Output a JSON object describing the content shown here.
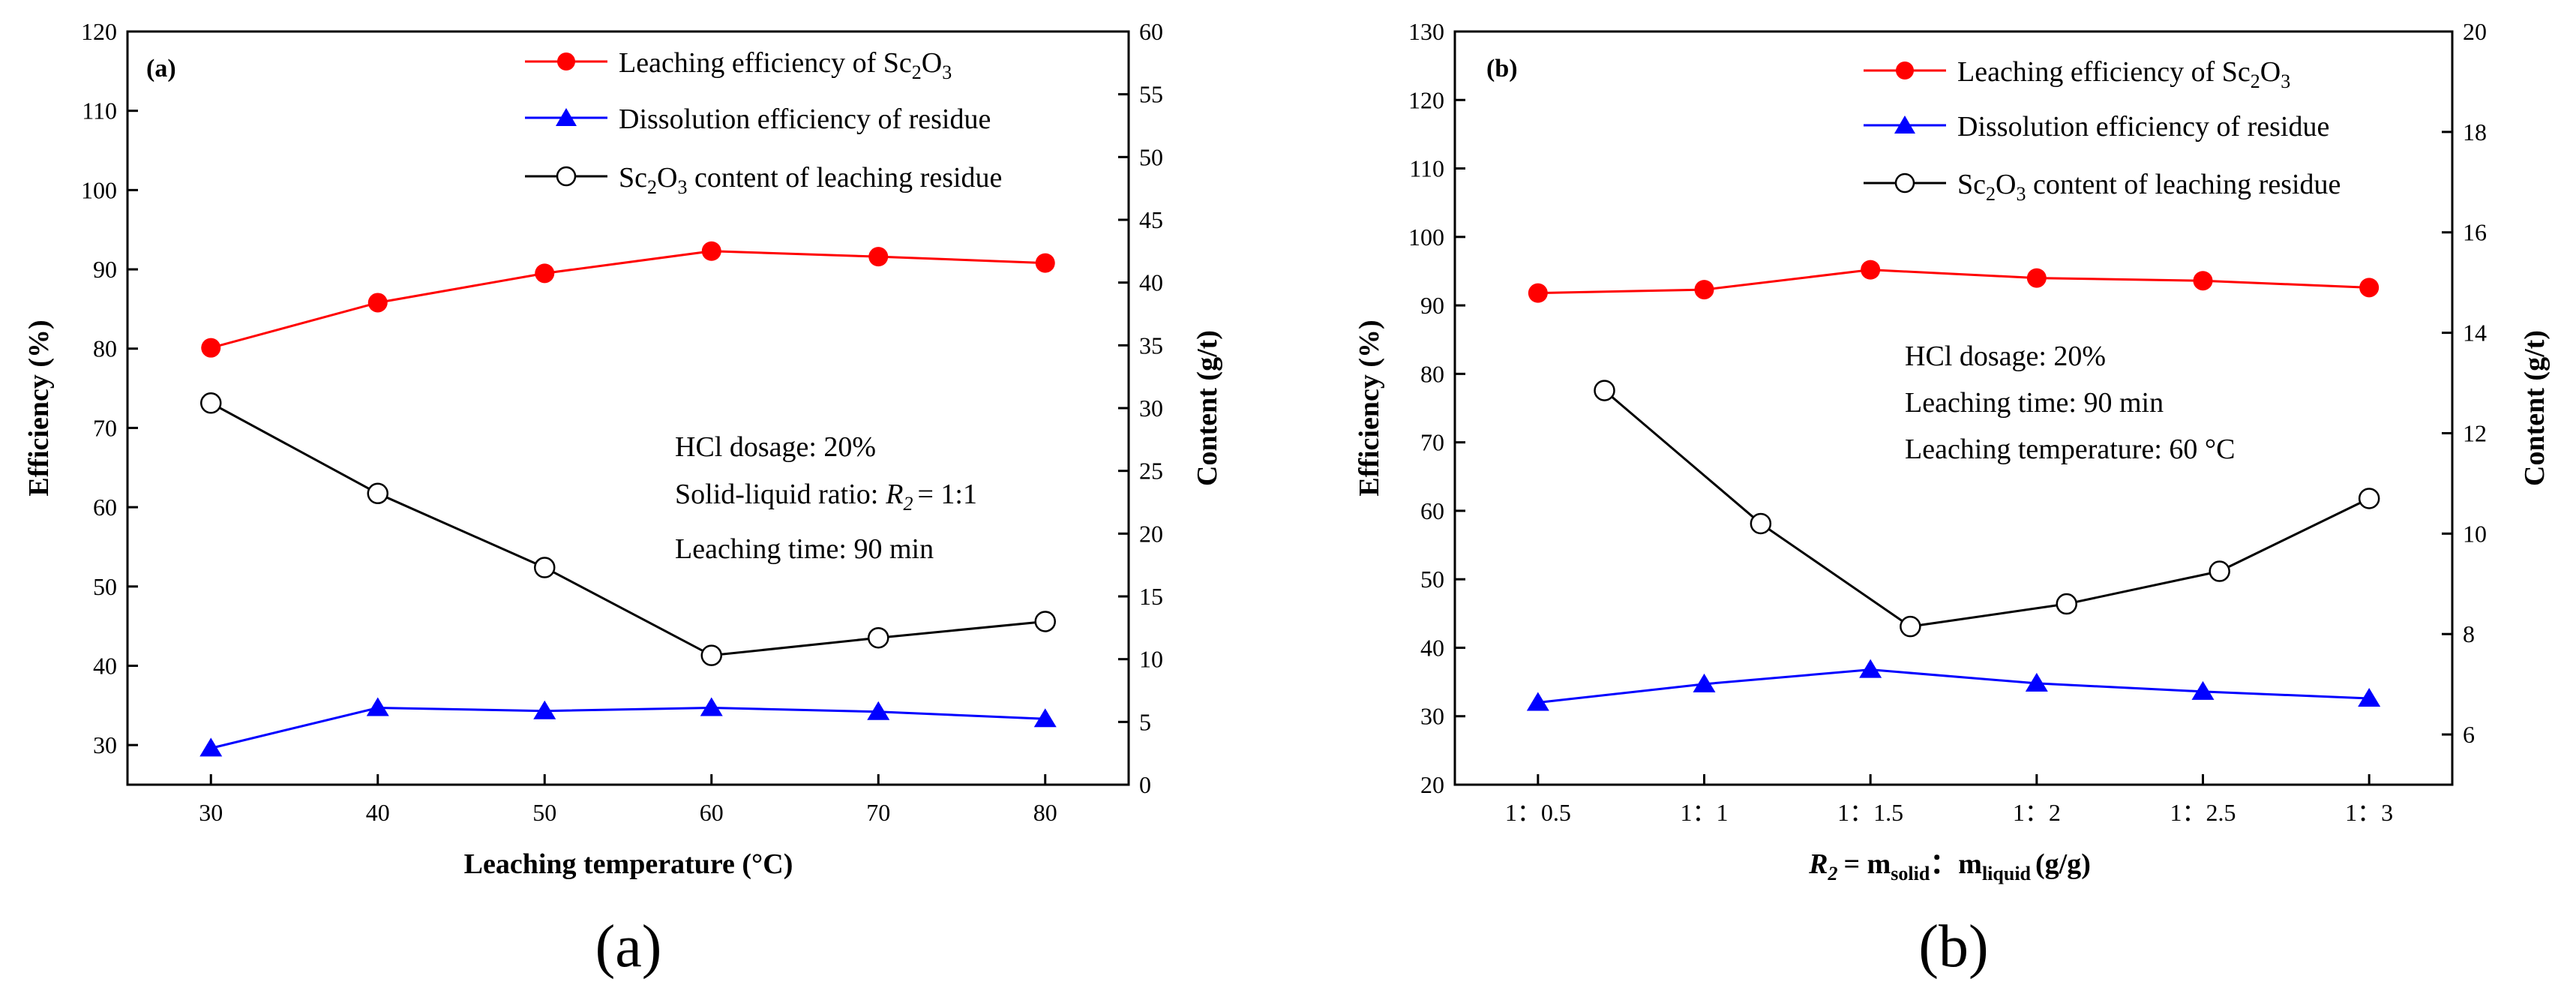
{
  "chart_data": [
    {
      "type": "line",
      "panel_label": "(a)",
      "caption": "(a)",
      "xlabel": "Leaching temperature (°C)",
      "ylabel": "Efficiency (%)",
      "y2label": "Content (g/t)",
      "categories": [
        "30",
        "40",
        "50",
        "60",
        "70",
        "80"
      ],
      "x": [
        30,
        40,
        50,
        60,
        70,
        80
      ],
      "xlim": [
        25,
        85
      ],
      "ylim": [
        25,
        120
      ],
      "y2lim": [
        0,
        60
      ],
      "yticks": [
        30,
        40,
        50,
        60,
        70,
        80,
        90,
        100,
        110,
        120
      ],
      "y2ticks": [
        0,
        5,
        10,
        15,
        20,
        25,
        30,
        35,
        40,
        45,
        50,
        55,
        60
      ],
      "series": [
        {
          "name": "Leaching efficiency of Sc2O3",
          "legend_main": "Leaching efficiency of Sc",
          "axis": "left",
          "marker": "circle-filled",
          "color": "#ff0000",
          "values": [
            80.1,
            85.8,
            89.5,
            92.3,
            91.6,
            90.8
          ]
        },
        {
          "name": "Dissolution efficiency of residue",
          "legend_main": "Dissolution efficiency of residue",
          "axis": "left",
          "marker": "triangle",
          "color": "#0000ff",
          "values": [
            29.6,
            34.7,
            34.3,
            34.7,
            34.2,
            33.3
          ]
        },
        {
          "name": "Sc2O3 content of leaching residue",
          "legend_main": " content of leaching residue",
          "axis": "right",
          "marker": "circle-open",
          "color": "#000000",
          "values": [
            30.4,
            23.2,
            17.3,
            10.3,
            11.7,
            13.0
          ]
        }
      ],
      "annotations": [
        "HCl dosage: 20%",
        "Solid-liquid ratio:",
        "Leaching time: 90 min"
      ],
      "annotation_r2_value": "= 1:1"
    },
    {
      "type": "line",
      "panel_label": "(b)",
      "caption": "(b)",
      "xlabel": "= m",
      "xlabel_sub1": "solid",
      "xlabel_sep": "：m",
      "xlabel_sub2": "liquid",
      "xlabel_unit": "(g/g)",
      "ylabel": "Efficiency (%)",
      "y2label": "Content (g/t)",
      "categories": [
        "1：0.5",
        "1：1",
        "1：1.5",
        "1：2",
        "1：2.5",
        "1：3"
      ],
      "x": [
        0.5,
        1,
        1.5,
        2,
        2.5,
        3
      ],
      "xlim": [
        0.25,
        3.25
      ],
      "ylim": [
        20,
        130
      ],
      "y2lim": [
        5,
        20
      ],
      "yticks": [
        20,
        30,
        40,
        50,
        60,
        70,
        80,
        90,
        100,
        110,
        120,
        130
      ],
      "y2ticks": [
        6,
        8,
        10,
        12,
        14,
        16,
        18,
        20
      ],
      "series": [
        {
          "name": "Leaching efficiency of Sc2O3",
          "legend_main": "Leaching efficiency of Sc",
          "axis": "left",
          "marker": "circle-filled",
          "color": "#ff0000",
          "x": [
            0.5,
            1,
            1.5,
            2,
            2.5,
            3
          ],
          "values": [
            91.8,
            92.3,
            95.2,
            94.0,
            93.6,
            92.6
          ]
        },
        {
          "name": "Dissolution efficiency of residue",
          "legend_main": "Dissolution efficiency of residue",
          "axis": "left",
          "marker": "triangle",
          "color": "#0000ff",
          "x": [
            0.5,
            1,
            1.5,
            2,
            2.5,
            3
          ],
          "values": [
            32.0,
            34.7,
            36.8,
            34.8,
            33.6,
            32.6
          ]
        },
        {
          "name": "Sc2O3 content of leaching residue",
          "legend_main": " content of leaching residue",
          "axis": "right",
          "marker": "circle-open",
          "color": "#000000",
          "x": [
            0.7,
            1.17,
            1.62,
            2.09,
            2.55,
            3.0
          ],
          "values": [
            12.85,
            10.2,
            8.15,
            8.6,
            9.25,
            10.7
          ]
        }
      ],
      "annotations": [
        "HCl dosage: 20%",
        "Leaching time: 90 min",
        "Leaching temperature: 60 °C"
      ]
    }
  ],
  "symbols": {
    "sc": "Sc",
    "o": "O",
    "n2": "2",
    "n3": "3",
    "r": "R",
    "r_sub": "2"
  }
}
